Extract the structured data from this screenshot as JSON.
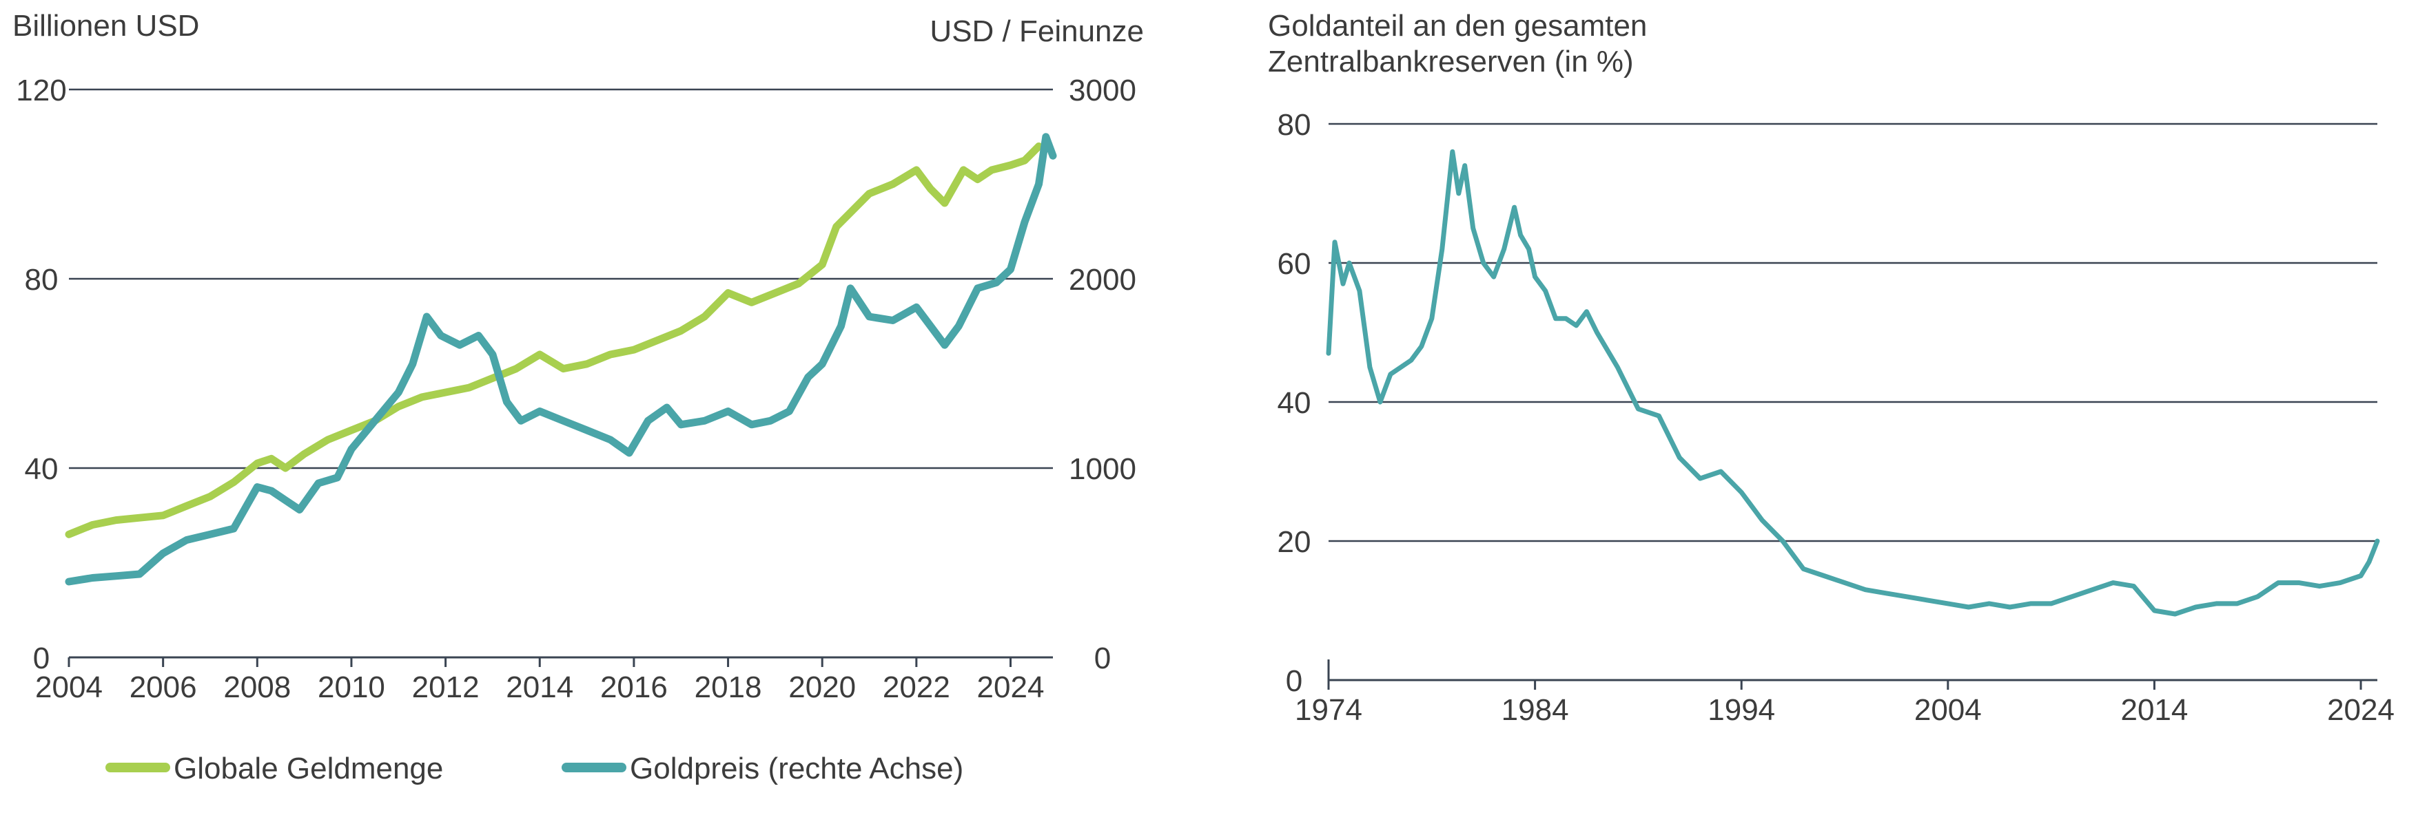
{
  "colors": {
    "geldmenge": "#a8cf4f",
    "goldpreis": "#4aa5a8",
    "goldanteil": "#4aa5a8",
    "grid": "#3a4452",
    "text": "#3c3c3c"
  },
  "chart_data": [
    {
      "type": "line",
      "left_axis_label": "Billionen USD",
      "right_axis_label": "USD / Feinunze",
      "y_left_ticks": [
        "0",
        "40",
        "80",
        "120"
      ],
      "y_right_ticks": [
        "0",
        "1000",
        "2000",
        "3000"
      ],
      "ylim_left": [
        0,
        120
      ],
      "ylim_right": [
        0,
        3000
      ],
      "xlim": [
        2004,
        2024.9
      ],
      "x_ticks": [
        "2004",
        "2006",
        "2008",
        "2010",
        "2012",
        "2014",
        "2016",
        "2018",
        "2020",
        "2022",
        "2024"
      ],
      "grid": "horizontal",
      "legend_position": "bottom",
      "series": [
        {
          "name": "Globale Geldmenge",
          "axis": "left",
          "x": [
            2004,
            2004.5,
            2005,
            2005.5,
            2006,
            2006.5,
            2007,
            2007.5,
            2008,
            2008.3,
            2008.6,
            2009,
            2009.5,
            2010,
            2010.5,
            2011,
            2011.5,
            2012,
            2012.5,
            2013,
            2013.5,
            2014,
            2014.5,
            2015,
            2015.5,
            2016,
            2016.5,
            2017,
            2017.5,
            2018,
            2018.5,
            2019,
            2019.5,
            2020,
            2020.3,
            2020.6,
            2021,
            2021.5,
            2022,
            2022.3,
            2022.6,
            2023,
            2023.3,
            2023.6,
            2024,
            2024.3,
            2024.6
          ],
          "values": [
            26,
            28,
            29,
            29.5,
            30,
            32,
            34,
            37,
            41,
            42,
            40,
            43,
            46,
            48,
            50,
            53,
            55,
            56,
            57,
            59,
            61,
            64,
            61,
            62,
            64,
            65,
            67,
            69,
            72,
            77,
            75,
            77,
            79,
            83,
            91,
            94,
            98,
            100,
            103,
            99,
            96,
            103,
            101,
            103,
            104,
            105,
            108
          ]
        },
        {
          "name": "Goldpreis (rechte Achse)",
          "axis": "right",
          "x": [
            2004,
            2004.5,
            2005,
            2005.5,
            2006,
            2006.5,
            2007,
            2007.5,
            2008,
            2008.3,
            2008.6,
            2008.9,
            2009.3,
            2009.7,
            2010,
            2010.5,
            2011,
            2011.3,
            2011.6,
            2011.9,
            2012.3,
            2012.7,
            2013,
            2013.3,
            2013.6,
            2014,
            2014.5,
            2015,
            2015.5,
            2015.9,
            2016.3,
            2016.7,
            2017,
            2017.5,
            2018,
            2018.5,
            2018.9,
            2019.3,
            2019.7,
            2020,
            2020.4,
            2020.6,
            2021,
            2021.5,
            2022,
            2022.3,
            2022.6,
            2022.9,
            2023.3,
            2023.7,
            2024,
            2024.3,
            2024.6,
            2024.75,
            2024.9
          ],
          "values": [
            400,
            420,
            430,
            440,
            550,
            620,
            650,
            680,
            900,
            880,
            830,
            780,
            920,
            950,
            1100,
            1250,
            1400,
            1550,
            1800,
            1700,
            1650,
            1700,
            1600,
            1350,
            1250,
            1300,
            1250,
            1200,
            1150,
            1080,
            1250,
            1320,
            1230,
            1250,
            1300,
            1230,
            1250,
            1300,
            1480,
            1550,
            1750,
            1950,
            1800,
            1780,
            1850,
            1750,
            1650,
            1750,
            1950,
            1980,
            2050,
            2300,
            2500,
            2750,
            2650
          ]
        }
      ]
    },
    {
      "type": "line",
      "title": "Goldanteil an den gesamten Zentralbankreserven (in %)",
      "title_lines": [
        "Goldanteil an den gesamten",
        "Zentralbankreserven (in %)"
      ],
      "y_ticks": [
        "0",
        "20",
        "40",
        "60",
        "80"
      ],
      "ylim": [
        0,
        80
      ],
      "xlim": [
        1974,
        2024.8
      ],
      "x_ticks": [
        "1974",
        "1984",
        "1994",
        "2004",
        "2014",
        "2024"
      ],
      "grid": "horizontal",
      "series": [
        {
          "x": [
            1974,
            1974.3,
            1974.7,
            1975,
            1975.5,
            1976,
            1976.5,
            1977,
            1977.5,
            1978,
            1978.5,
            1979,
            1979.5,
            1980,
            1980.3,
            1980.6,
            1981,
            1981.5,
            1982,
            1982.5,
            1983,
            1983.3,
            1983.7,
            1984,
            1984.5,
            1985,
            1985.5,
            1986,
            1986.5,
            1987,
            1988,
            1989,
            1990,
            1991,
            1992,
            1993,
            1994,
            1995,
            1996,
            1997,
            1998,
            1999,
            2000,
            2001,
            2002,
            2003,
            2004,
            2005,
            2006,
            2007,
            2008,
            2009,
            2010,
            2011,
            2012,
            2013,
            2014,
            2015,
            2016,
            2017,
            2018,
            2019,
            2020,
            2021,
            2022,
            2023,
            2024,
            2024.4,
            2024.8
          ],
          "values": [
            47,
            63,
            57,
            60,
            56,
            45,
            40,
            44,
            45,
            46,
            48,
            52,
            62,
            76,
            70,
            74,
            65,
            60,
            58,
            62,
            68,
            64,
            62,
            58,
            56,
            52,
            52,
            51,
            53,
            50,
            45,
            39,
            38,
            32,
            29,
            30,
            27,
            23,
            20,
            16,
            15,
            14,
            13,
            12.5,
            12,
            11.5,
            11,
            10.5,
            11,
            10.5,
            11,
            11,
            12,
            13,
            14,
            13.5,
            10,
            9.5,
            10.5,
            11,
            11,
            12,
            14,
            14,
            13.5,
            14,
            15,
            17,
            20
          ]
        }
      ]
    }
  ],
  "legend": [
    {
      "label": "Globale Geldmenge",
      "color": "#a8cf4f"
    },
    {
      "label": "Goldpreis (rechte Achse)",
      "color": "#4aa5a8"
    }
  ]
}
